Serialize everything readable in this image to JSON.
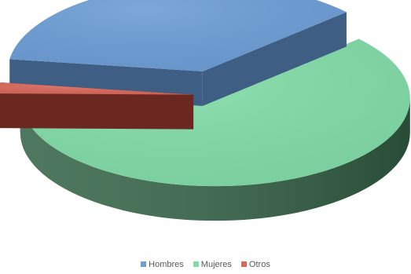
{
  "chart_data": {
    "type": "pie",
    "style": "3d-exploded",
    "categories": [
      "Hombres",
      "Mujeres",
      "Otros"
    ],
    "values": [
      36,
      62,
      2
    ],
    "colors": [
      "#6d9ed6",
      "#82dca8",
      "#d9675a"
    ],
    "side_colors": [
      "#3e5e84",
      "#356548",
      "#6b2820"
    ],
    "legend": {
      "position": "bottom",
      "entries": [
        "Hombres",
        "Mujeres",
        "Otros"
      ]
    }
  }
}
